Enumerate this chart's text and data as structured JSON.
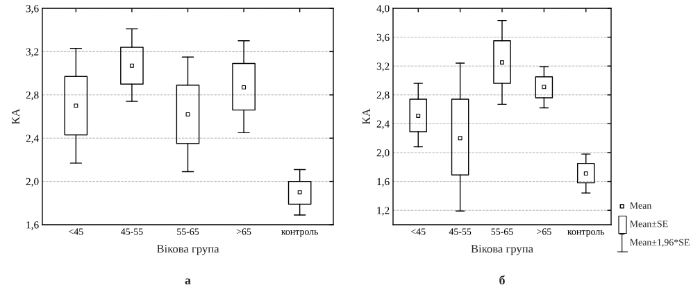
{
  "chart_data": [
    {
      "type": "box",
      "title": "а",
      "xlabel": "Вікова група",
      "ylabel": "КА",
      "categories": [
        "<45",
        "45-55",
        "55-65",
        ">65",
        "контроль"
      ],
      "boxes": [
        {
          "low": 2.17,
          "q1": 2.43,
          "median": 2.7,
          "q3": 2.97,
          "high": 3.23
        },
        {
          "low": 2.74,
          "q1": 2.9,
          "median": 3.07,
          "q3": 3.24,
          "high": 3.41
        },
        {
          "low": 2.09,
          "q1": 2.35,
          "median": 2.62,
          "q3": 2.89,
          "high": 3.15
        },
        {
          "low": 2.45,
          "q1": 2.66,
          "median": 2.87,
          "q3": 3.09,
          "high": 3.3
        },
        {
          "low": 1.69,
          "q1": 1.79,
          "median": 1.9,
          "q3": 2.0,
          "high": 2.11
        }
      ],
      "ylim": [
        1.6,
        3.6
      ],
      "yticks": [
        {
          "value": 1.6,
          "label": "1,6"
        },
        {
          "value": 2.0,
          "label": "2,0"
        },
        {
          "value": 2.4,
          "label": "2,4"
        },
        {
          "value": 2.8,
          "label": "2,8"
        },
        {
          "value": 3.2,
          "label": "3,2"
        },
        {
          "value": 3.6,
          "label": "3,6"
        }
      ],
      "grid": "y",
      "marker": "square"
    },
    {
      "type": "box",
      "title": "б",
      "xlabel": "Вікова група",
      "ylabel": "КА",
      "categories": [
        "<45",
        "45-55",
        "55-65",
        ">65",
        "контроль"
      ],
      "boxes": [
        {
          "low": 2.08,
          "q1": 2.29,
          "median": 2.51,
          "q3": 2.74,
          "high": 2.96
        },
        {
          "low": 1.19,
          "q1": 1.69,
          "median": 2.2,
          "q3": 2.74,
          "high": 3.24
        },
        {
          "low": 2.67,
          "q1": 2.96,
          "median": 3.25,
          "q3": 3.55,
          "high": 3.83
        },
        {
          "low": 2.62,
          "q1": 2.76,
          "median": 2.91,
          "q3": 3.05,
          "high": 3.19
        },
        {
          "low": 1.44,
          "q1": 1.58,
          "median": 1.71,
          "q3": 1.85,
          "high": 1.98
        }
      ],
      "ylim": [
        1.0,
        4.0
      ],
      "yticks": [
        {
          "value": 1.2,
          "label": "1,2"
        },
        {
          "value": 1.6,
          "label": "1,6"
        },
        {
          "value": 2.0,
          "label": "2,0"
        },
        {
          "value": 2.4,
          "label": "2,4"
        },
        {
          "value": 2.8,
          "label": "2,8"
        },
        {
          "value": 3.2,
          "label": "3,2"
        },
        {
          "value": 3.6,
          "label": "3,6"
        },
        {
          "value": 4.0,
          "label": "4,0"
        }
      ],
      "grid": "y",
      "marker": "square",
      "annotations": [
        "Mean",
        "Mean±SE",
        "Mean±1,96*SE"
      ]
    }
  ]
}
